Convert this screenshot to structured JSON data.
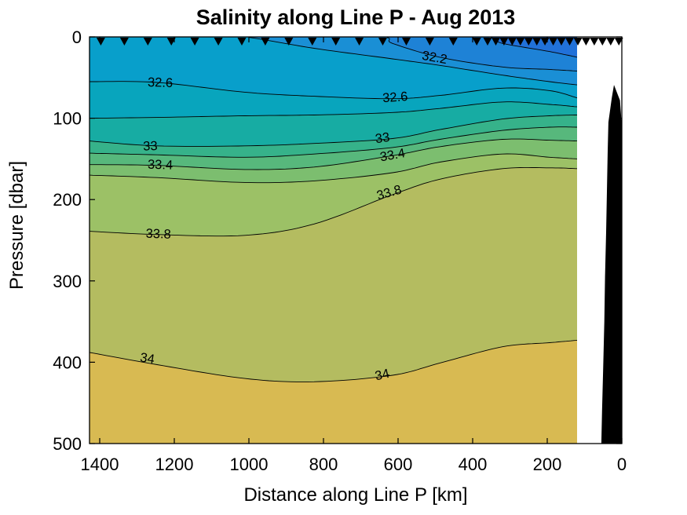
{
  "title": "Salinity along Line P - Aug 2013",
  "x_axis": {
    "label": "Distance along Line P [km]",
    "ticks": [
      1400,
      1200,
      1000,
      800,
      600,
      400,
      200,
      0
    ],
    "reversed": true,
    "range_km": [
      0,
      1427
    ]
  },
  "y_axis": {
    "label": "Pressure [dbar]",
    "ticks": [
      0,
      100,
      200,
      300,
      400,
      500
    ],
    "range_dbar": [
      0,
      500
    ],
    "increasing_downward": true
  },
  "colors": {
    "axis": "#000000",
    "contour_line": "#000000",
    "station_marker": "#000000",
    "bathymetry": "#000000",
    "background": "#ffffff"
  },
  "chart_data": {
    "type": "filled-contour",
    "title": "Salinity along Line P - Aug 2013",
    "xlabel": "Distance along Line P [km]",
    "ylabel": "Pressure [dbar]",
    "x_unit": "km",
    "y_unit": "dbar",
    "contour_interval": 0.2,
    "data_extent_km": [
      120,
      1427
    ],
    "contour_levels": [
      {
        "level": 32.0,
        "points_km_dbar": [
          [
            1427,
            0
          ],
          [
            620,
            0
          ],
          [
            370,
            0
          ],
          [
            320,
            8
          ],
          [
            194,
            18
          ],
          [
            120,
            25
          ]
        ]
      },
      {
        "level": 32.2,
        "points_km_dbar": [
          [
            1427,
            0
          ],
          [
            900,
            0
          ],
          [
            647,
            0
          ],
          [
            615,
            8
          ],
          [
            488,
            25
          ],
          [
            320,
            37
          ],
          [
            194,
            40
          ],
          [
            120,
            42
          ]
        ]
      },
      {
        "level": 32.4,
        "points_km_dbar": [
          [
            1427,
            0
          ],
          [
            1100,
            0
          ],
          [
            1011,
            0
          ],
          [
            825,
            14
          ],
          [
            615,
            27
          ],
          [
            488,
            35
          ],
          [
            320,
            47
          ],
          [
            194,
            55
          ],
          [
            120,
            59
          ]
        ]
      },
      {
        "level": 32.6,
        "points_km_dbar": [
          [
            1427,
            55
          ],
          [
            1246,
            56
          ],
          [
            1011,
            68
          ],
          [
            825,
            73
          ],
          [
            615,
            76
          ],
          [
            488,
            72
          ],
          [
            320,
            63
          ],
          [
            194,
            66
          ],
          [
            120,
            75
          ]
        ]
      },
      {
        "level": 32.8,
        "points_km_dbar": [
          [
            1427,
            100
          ],
          [
            1246,
            99
          ],
          [
            1011,
            97
          ],
          [
            825,
            96
          ],
          [
            615,
            93
          ],
          [
            488,
            88
          ],
          [
            320,
            80
          ],
          [
            194,
            83
          ],
          [
            120,
            86
          ]
        ]
      },
      {
        "level": 33.0,
        "points_km_dbar": [
          [
            1427,
            128
          ],
          [
            1246,
            134
          ],
          [
            1011,
            134
          ],
          [
            825,
            131
          ],
          [
            615,
            125
          ],
          [
            488,
            114
          ],
          [
            320,
            101
          ],
          [
            194,
            97
          ],
          [
            120,
            96
          ]
        ]
      },
      {
        "level": 33.2,
        "points_km_dbar": [
          [
            1427,
            143
          ],
          [
            1246,
            145
          ],
          [
            1011,
            148
          ],
          [
            825,
            144
          ],
          [
            615,
            136
          ],
          [
            488,
            126
          ],
          [
            320,
            115
          ],
          [
            194,
            111
          ],
          [
            120,
            111
          ]
        ]
      },
      {
        "level": 33.4,
        "points_km_dbar": [
          [
            1427,
            157
          ],
          [
            1246,
            158
          ],
          [
            1011,
            163
          ],
          [
            825,
            160
          ],
          [
            615,
            146
          ],
          [
            488,
            135
          ],
          [
            320,
            126
          ],
          [
            194,
            127
          ],
          [
            120,
            128
          ]
        ]
      },
      {
        "level": 33.6,
        "points_km_dbar": [
          [
            1427,
            170
          ],
          [
            1246,
            173
          ],
          [
            1011,
            179
          ],
          [
            825,
            177
          ],
          [
            615,
            167
          ],
          [
            488,
            154
          ],
          [
            320,
            144
          ],
          [
            194,
            148
          ],
          [
            120,
            150
          ]
        ]
      },
      {
        "level": 33.8,
        "points_km_dbar": [
          [
            1427,
            239
          ],
          [
            1246,
            243
          ],
          [
            1011,
            244
          ],
          [
            825,
            230
          ],
          [
            615,
            194
          ],
          [
            488,
            175
          ],
          [
            320,
            162
          ],
          [
            194,
            161
          ],
          [
            120,
            162
          ]
        ]
      },
      {
        "level": 34.0,
        "points_km_dbar": [
          [
            1427,
            388
          ],
          [
            1246,
            403
          ],
          [
            1011,
            420
          ],
          [
            825,
            424
          ],
          [
            615,
            416
          ],
          [
            488,
            401
          ],
          [
            320,
            381
          ],
          [
            194,
            376
          ],
          [
            120,
            373
          ]
        ]
      }
    ],
    "fill_bands": [
      {
        "range": "< 32.0",
        "color": "#2171d9"
      },
      {
        "range": "32.0 - 32.2",
        "color": "#1e82d6"
      },
      {
        "range": "32.2 - 32.4",
        "color": "#1a8fd5"
      },
      {
        "range": "32.4 - 32.6",
        "color": "#089fcb"
      },
      {
        "range": "32.6 - 32.8",
        "color": "#08a5bd"
      },
      {
        "range": "32.8 - 33.0",
        "color": "#17aca3"
      },
      {
        "range": "33.0 - 33.2",
        "color": "#36b28a"
      },
      {
        "range": "33.2 - 33.4",
        "color": "#57b87c"
      },
      {
        "range": "33.4 - 33.6",
        "color": "#7cbe6f"
      },
      {
        "range": "33.6 - 33.8",
        "color": "#9cc166"
      },
      {
        "range": "33.8 - 34.0",
        "color": "#b4bc60"
      },
      {
        "range": "> 34.0",
        "color": "#d8ba52"
      }
    ],
    "contour_labels": [
      {
        "text": "32.2",
        "km": 504,
        "dbar": 25,
        "rot_deg": 10
      },
      {
        "text": "32.6",
        "km": 1238,
        "dbar": 56,
        "rot_deg": 2
      },
      {
        "text": "32.6",
        "km": 607,
        "dbar": 74,
        "rot_deg": -4
      },
      {
        "text": "33",
        "km": 1264,
        "dbar": 134,
        "rot_deg": -2
      },
      {
        "text": "33",
        "km": 640,
        "dbar": 124,
        "rot_deg": -9
      },
      {
        "text": "33.4",
        "km": 1238,
        "dbar": 157,
        "rot_deg": 2
      },
      {
        "text": "33.4",
        "km": 613,
        "dbar": 145,
        "rot_deg": -10
      },
      {
        "text": "33.8",
        "km": 1243,
        "dbar": 242,
        "rot_deg": 2
      },
      {
        "text": "33.8",
        "km": 621,
        "dbar": 191,
        "rot_deg": -16
      },
      {
        "text": "34",
        "km": 1274,
        "dbar": 395,
        "rot_deg": 9
      },
      {
        "text": "34",
        "km": 640,
        "dbar": 415,
        "rot_deg": -13
      }
    ],
    "stations_km": [
      1397,
      1334,
      1271,
      1208,
      1145,
      1082,
      1019,
      956,
      893,
      830,
      767,
      704,
      641,
      578,
      515,
      452,
      389,
      360,
      338,
      316,
      294,
      272,
      250,
      228,
      206,
      184,
      162,
      140,
      118,
      96,
      74,
      52,
      30,
      8
    ],
    "bathymetry": {
      "color": "#000000",
      "outline_km_dbar": [
        [
          21,
          59
        ],
        [
          27,
          75
        ],
        [
          36,
          105
        ],
        [
          38,
          140
        ],
        [
          40,
          190
        ],
        [
          42,
          240
        ],
        [
          45,
          295
        ],
        [
          47,
          350
        ],
        [
          50,
          405
        ],
        [
          53,
          460
        ],
        [
          55,
          500
        ],
        [
          0,
          500
        ],
        [
          0,
          109
        ],
        [
          5,
          78
        ]
      ]
    },
    "grid": false,
    "legend": "none"
  }
}
